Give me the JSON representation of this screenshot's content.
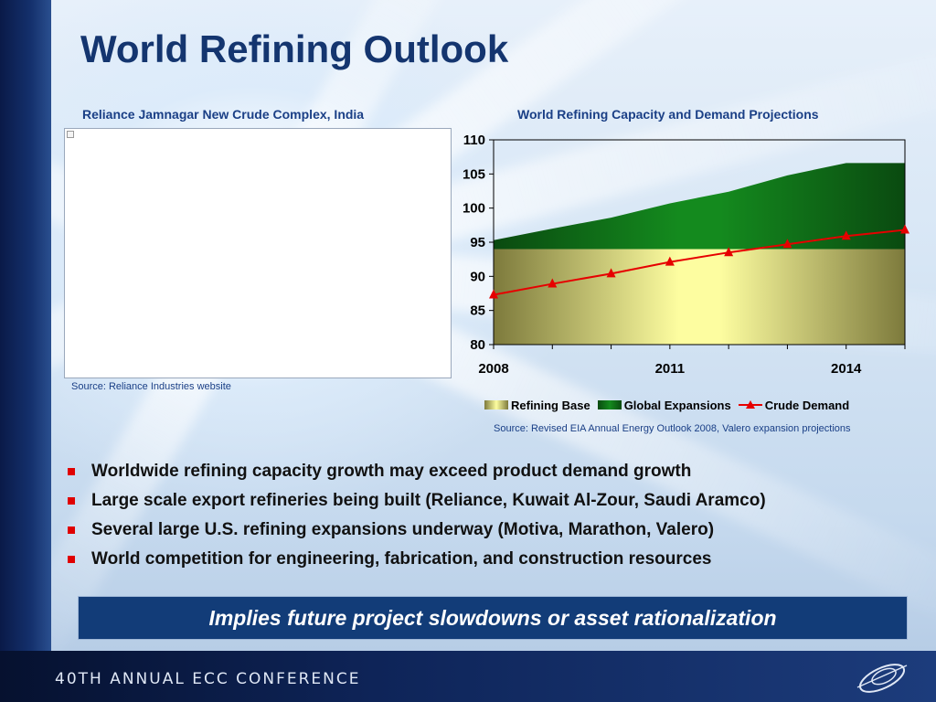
{
  "slide": {
    "title": "World Refining Outlook",
    "left_caption": "Reliance Jamnagar New Crude Complex, India",
    "right_caption": "World Refining Capacity and Demand Projections",
    "left_source": "Source: Reliance Industries website",
    "right_source": "Source: Revised EIA Annual Energy Outlook 2008, Valero expansion projections",
    "bullets": [
      "Worldwide refining capacity growth may exceed product demand growth",
      "Large scale export refineries being built (Reliance, Kuwait Al-Zour, Saudi Aramco)",
      "Several large U.S. refining expansions underway (Motiva, Marathon, Valero)",
      "World competition for engineering, fabrication, and construction resources"
    ],
    "callout": "Implies future project slowdowns or asset rationalization",
    "footer_text": "40TH ANNUAL ECC CONFERENCE",
    "colors": {
      "title": "#14356f",
      "caption": "#1a3f86",
      "bullet_mark": "#e00000",
      "callout_bg": "#123c78",
      "refining_base": "#f3f39a",
      "global_expansions": "#0c6a12",
      "crude_demand": "#e60000"
    }
  },
  "chart_data": {
    "type": "area",
    "title": "World Refining Capacity and Demand Projections",
    "x": [
      2008,
      2009,
      2010,
      2011,
      2012,
      2013,
      2014,
      2015
    ],
    "x_tick_labels": [
      "2008",
      "2011",
      "2014"
    ],
    "ylim": [
      80,
      110
    ],
    "y_ticks": [
      80,
      85,
      90,
      95,
      100,
      105,
      110
    ],
    "series": [
      {
        "name": "Refining Base",
        "kind": "area",
        "values": [
          94,
          94,
          94,
          94,
          94,
          94,
          94,
          94
        ]
      },
      {
        "name": "Global Expansions",
        "kind": "stacked-area",
        "values": [
          1.3,
          3.0,
          4.6,
          6.7,
          8.4,
          10.8,
          12.6,
          12.6
        ]
      },
      {
        "name": "Crude Demand",
        "kind": "line",
        "marker": "triangle",
        "values": [
          87.3,
          88.9,
          90.4,
          92.1,
          93.5,
          94.7,
          95.9,
          96.8
        ]
      }
    ],
    "legend": "bottom"
  }
}
